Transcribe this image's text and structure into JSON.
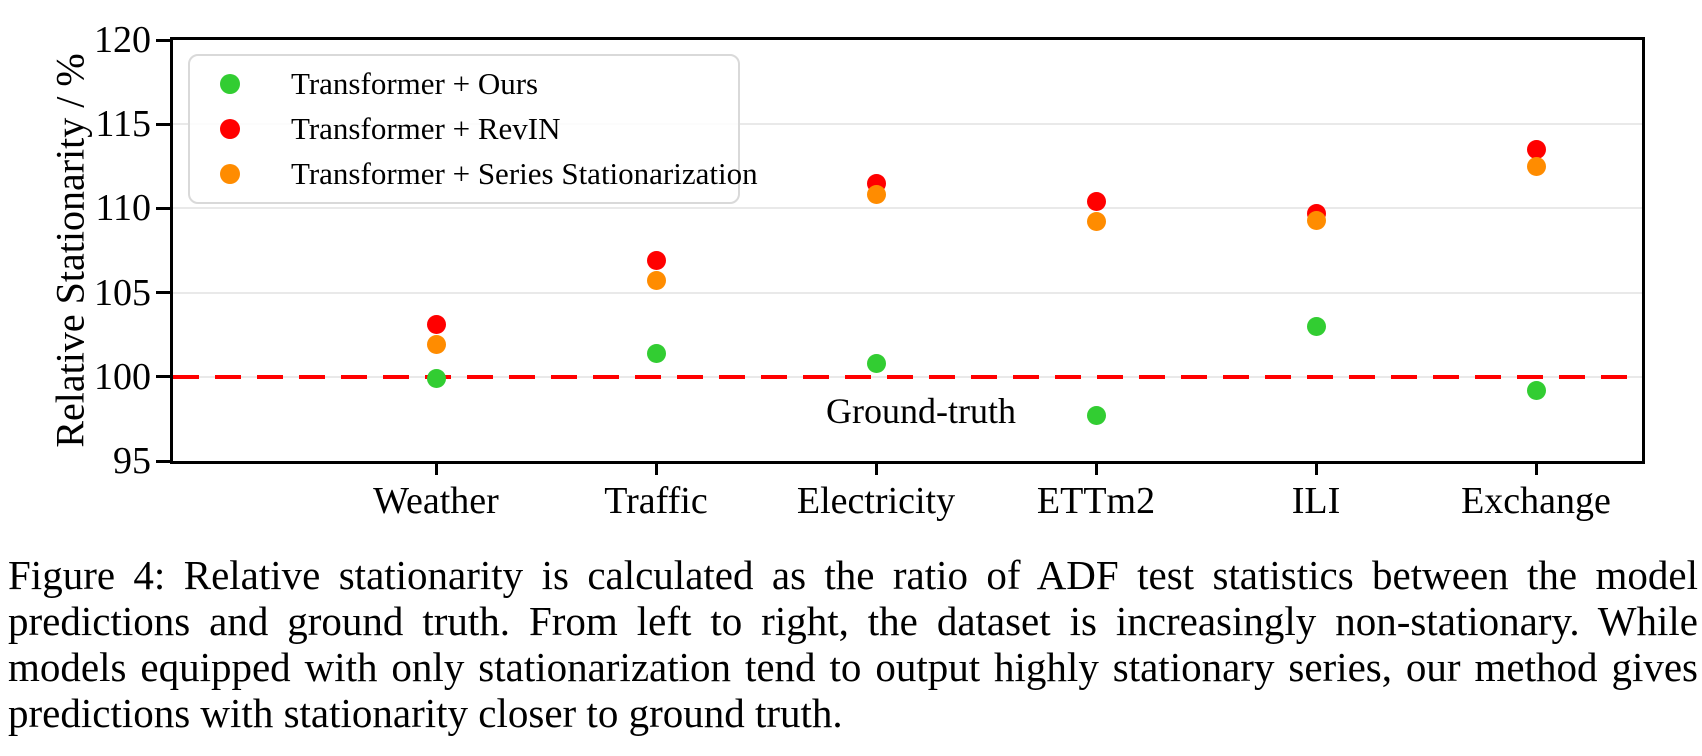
{
  "chart_data": {
    "type": "scatter",
    "categories": [
      "Weather",
      "Traffic",
      "Electricity",
      "ETTm2",
      "ILI",
      "Exchange"
    ],
    "series": [
      {
        "name": "Transformer + Ours",
        "color": "#32CD32",
        "values": [
          99.9,
          101.4,
          100.8,
          97.7,
          103.0,
          99.2
        ]
      },
      {
        "name": "Transformer + RevIN",
        "color": "#FF0000",
        "values": [
          103.1,
          106.9,
          111.5,
          110.4,
          109.7,
          113.5
        ]
      },
      {
        "name": "Transformer + Series Stationarization",
        "color": "#FF8C00",
        "values": [
          101.9,
          105.7,
          110.8,
          109.2,
          109.3,
          112.5
        ]
      }
    ],
    "ylabel": "Relative Stationarity / %",
    "xlabel": "",
    "ylim": [
      95,
      120
    ],
    "yticks": [
      95,
      100,
      105,
      110,
      115,
      120
    ],
    "grid": true,
    "grid_color": "#E9E9E9",
    "legend_position": "upper left",
    "reference_line": {
      "value": 100,
      "label": "Ground-truth",
      "color": "#FF0000",
      "style": "dashed"
    }
  },
  "caption": {
    "lines": [
      "Figure 4: Relative stationarity is calculated as the ratio of ADF test statistics between the model",
      "predictions and ground truth. From left to right, the dataset is increasingly non-stationary. While",
      "models equipped with only stationarization tend to output highly stationary series, our method gives",
      "predictions with stationarity closer to ground truth."
    ]
  }
}
